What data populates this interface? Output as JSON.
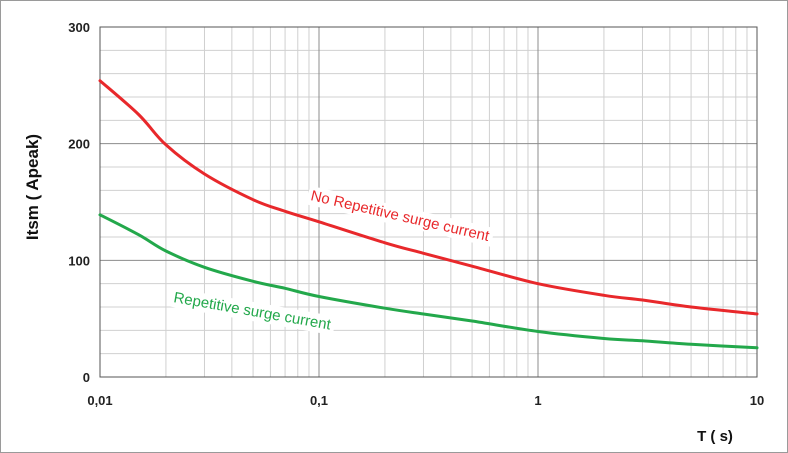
{
  "chart_data": {
    "type": "line",
    "title": "",
    "xlabel": "T ( s)",
    "ylabel": "Itsm ( Apeak)",
    "x_scale": "log",
    "xlim": [
      0.01,
      10
    ],
    "ylim": [
      0,
      300
    ],
    "x_ticks": [
      0.01,
      0.1,
      1,
      10
    ],
    "x_tick_labels": [
      "0,01",
      "0,1",
      "1",
      "10"
    ],
    "y_ticks": [
      0,
      100,
      200,
      300
    ],
    "y_tick_labels": [
      "0",
      "100",
      "200",
      "300"
    ],
    "grid": true,
    "legend": "none",
    "series": [
      {
        "name": "No Repetitive surge current",
        "color": "#e8282b",
        "x": [
          0.01,
          0.015,
          0.02,
          0.03,
          0.05,
          0.07,
          0.1,
          0.2,
          0.3,
          0.5,
          1,
          2,
          3,
          5,
          10
        ],
        "y": [
          254,
          225,
          199,
          174,
          152,
          142,
          133,
          115,
          106,
          95,
          80,
          70,
          66,
          60,
          54
        ]
      },
      {
        "name": "Repetitive surge current",
        "color": "#23a84b",
        "x": [
          0.01,
          0.015,
          0.02,
          0.03,
          0.05,
          0.07,
          0.1,
          0.2,
          0.3,
          0.5,
          1,
          2,
          3,
          5,
          10
        ],
        "y": [
          139,
          122,
          108,
          94,
          82,
          76,
          69,
          59,
          54,
          48,
          39,
          33,
          31,
          28,
          25
        ]
      }
    ]
  }
}
